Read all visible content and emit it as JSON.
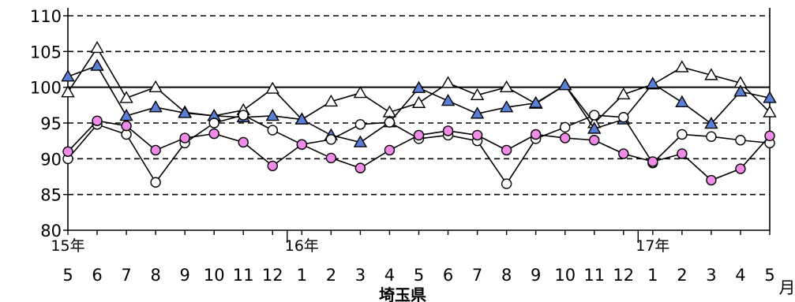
{
  "chart_data": {
    "type": "line",
    "title": "埼玉県",
    "unit_label": "月",
    "ylim": [
      80,
      110
    ],
    "yticks": [
      80,
      85,
      90,
      95,
      100,
      105,
      110
    ],
    "reference_line": 100,
    "grid": "horizontal-dashed",
    "x": [
      "5",
      "6",
      "7",
      "8",
      "9",
      "10",
      "11",
      "12",
      "1",
      "2",
      "3",
      "4",
      "5",
      "6",
      "7",
      "8",
      "9",
      "10",
      "11",
      "12",
      "1",
      "2",
      "3",
      "4",
      "5"
    ],
    "year_labels": [
      {
        "index": 0,
        "label": "15年"
      },
      {
        "index": 8,
        "label": "16年"
      },
      {
        "index": 20,
        "label": "17年"
      }
    ],
    "series": [
      {
        "marker": "triangle-open",
        "color": "#000000",
        "values": [
          99.3,
          105.5,
          98.5,
          100.0,
          96.5,
          96.0,
          96.8,
          99.8,
          95.5,
          98.0,
          99.2,
          96.5,
          97.8,
          100.6,
          98.9,
          100.0,
          97.7,
          100.3,
          95.0,
          99.0,
          100.4,
          102.8,
          101.7,
          100.6,
          96.5
        ]
      },
      {
        "marker": "triangle-filled",
        "color": "#5b7fd6",
        "values": [
          101.5,
          103.0,
          96.0,
          97.2,
          96.4,
          96.0,
          95.8,
          96.0,
          95.5,
          93.3,
          92.3,
          95.1,
          99.9,
          98.1,
          96.3,
          97.2,
          97.8,
          100.3,
          94.2,
          95.5,
          100.5,
          97.9,
          94.9,
          99.4,
          98.5
        ]
      },
      {
        "marker": "circle-open",
        "color": "#000000",
        "values": [
          90.0,
          94.8,
          93.4,
          86.7,
          92.2,
          95.0,
          96.1,
          94.0,
          92.0,
          92.7,
          94.8,
          95.1,
          92.8,
          93.3,
          92.5,
          86.5,
          92.8,
          94.4,
          96.1,
          95.8,
          89.4,
          93.4,
          93.1,
          92.6,
          92.2
        ]
      },
      {
        "marker": "circle-filled",
        "color": "#f08ce8",
        "values": [
          91.0,
          95.3,
          94.6,
          91.2,
          92.9,
          93.5,
          92.3,
          89.0,
          92.0,
          90.1,
          88.7,
          91.2,
          93.3,
          93.9,
          93.3,
          91.2,
          93.4,
          92.9,
          92.6,
          90.7,
          89.6,
          90.7,
          87.0,
          88.6,
          93.2
        ]
      }
    ]
  }
}
